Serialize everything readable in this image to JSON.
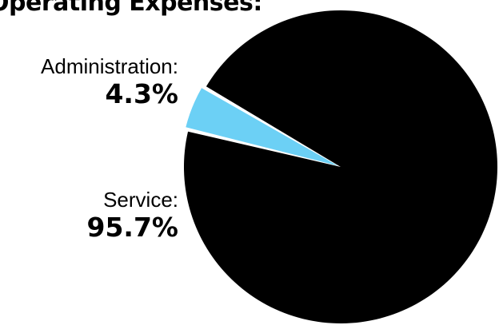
{
  "chart_data": {
    "type": "pie",
    "title": "Operating Expenses:",
    "slices": [
      {
        "label": "Service:",
        "value_text": "95.7%",
        "value": 95.7,
        "color": "#000000"
      },
      {
        "label": "Administration:",
        "value_text": "4.3%",
        "value": 4.3,
        "color": "#6cd0f5"
      }
    ]
  }
}
